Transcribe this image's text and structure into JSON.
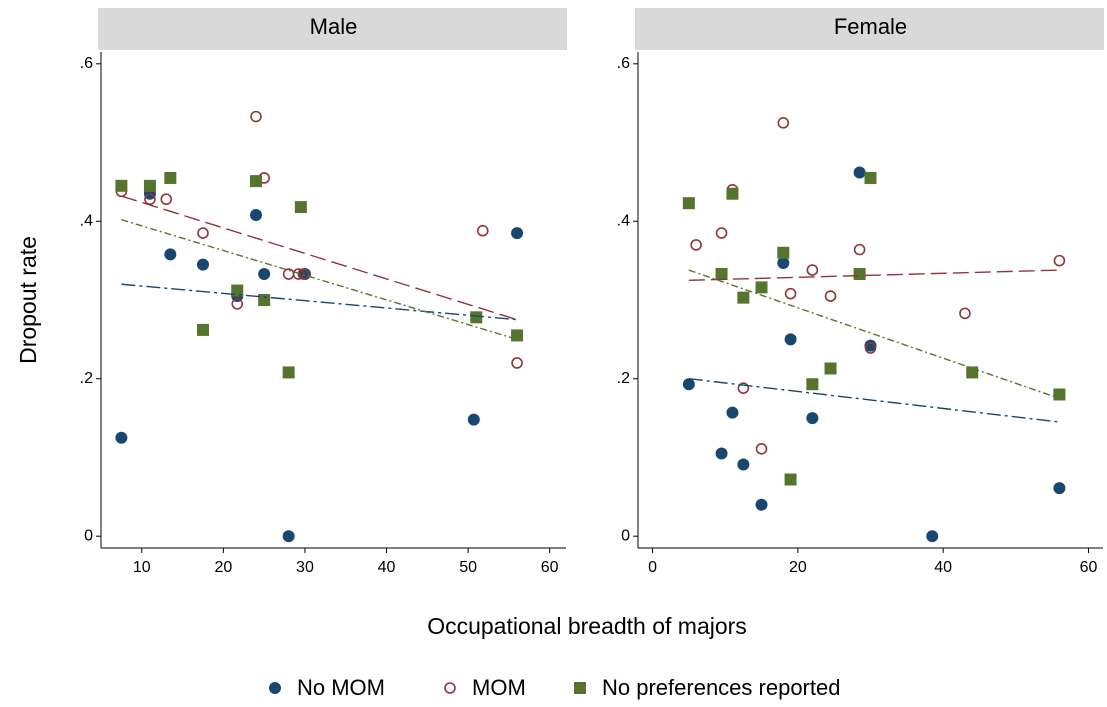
{
  "chart_data": {
    "type": "scatter",
    "xlabel": "Occupational breadth of majors",
    "ylabel": "Dropout rate",
    "series": [
      {
        "name": "No MOM",
        "color": "#1a476f",
        "marker": "circle"
      },
      {
        "name": "MOM",
        "color": "#90353b",
        "marker": "hollow-circle"
      },
      {
        "name": "No preferences reported",
        "color": "#55752f",
        "marker": "square"
      }
    ],
    "panels": [
      {
        "title": "Male",
        "xlim": [
          5,
          62
        ],
        "xticks": [
          10,
          20,
          30,
          40,
          50,
          60
        ],
        "ylim": [
          -0.015,
          0.615
        ],
        "yticks": [
          0,
          {
            "value": 0.2,
            "label": ".2"
          },
          {
            "value": 0.4,
            "label": ".4"
          },
          {
            "value": 0.6,
            "label": ".6"
          }
        ],
        "data": [
          {
            "x": [
              7.5,
              11,
              13.5,
              17.5,
              21.7,
              24,
              25,
              28,
              30,
              50.7,
              56
            ],
            "values": [
              0.125,
              0.435,
              0.358,
              0.345,
              0.305,
              0.408,
              0.333,
              0,
              0.333,
              0.148,
              0.385
            ],
            "fit": {
              "x": [
                7.5,
                56
              ],
              "values": [
                0.32,
                0.275
              ]
            }
          },
          {
            "x": [
              7.5,
              11,
              13,
              17.5,
              21.7,
              24,
              25,
              28,
              29.2,
              29.8,
              51.8,
              56
            ],
            "values": [
              0.438,
              0.428,
              0.428,
              0.385,
              0.295,
              0.533,
              0.455,
              0.333,
              0.333,
              0.333,
              0.388,
              0.22
            ],
            "fit": {
              "x": [
                7.5,
                56
              ],
              "values": [
                0.432,
                0.275
              ]
            }
          },
          {
            "x": [
              7.5,
              11,
              13.5,
              17.5,
              21.7,
              24,
              25,
              28,
              29.5,
              51,
              56
            ],
            "values": [
              0.445,
              0.445,
              0.455,
              0.262,
              0.312,
              0.451,
              0.3,
              0.208,
              0.418,
              0.278,
              0.255
            ],
            "fit": {
              "x": [
                7.5,
                56
              ],
              "values": [
                0.402,
                0.25
              ]
            }
          }
        ]
      },
      {
        "title": "Female",
        "xlim": [
          -2,
          62
        ],
        "xticks": [
          0,
          20,
          40,
          60
        ],
        "ylim": [
          -0.015,
          0.615
        ],
        "yticks": [
          0,
          {
            "value": 0.2,
            "label": ".2"
          },
          {
            "value": 0.4,
            "label": ".4"
          },
          {
            "value": 0.6,
            "label": ".6"
          }
        ],
        "data": [
          {
            "x": [
              5,
              9.5,
              11,
              12.5,
              15,
              18,
              19,
              22,
              28.5,
              30,
              38.5,
              56
            ],
            "values": [
              0.193,
              0.105,
              0.157,
              0.091,
              0.04,
              0.347,
              0.25,
              0.15,
              0.462,
              0.242,
              0,
              0.061
            ],
            "fit": {
              "x": [
                5,
                56
              ],
              "values": [
                0.2,
                0.145
              ]
            }
          },
          {
            "x": [
              6,
              9.5,
              11,
              12.5,
              15,
              18,
              19,
              22,
              24.5,
              28.5,
              30,
              43,
              56
            ],
            "values": [
              0.37,
              0.385,
              0.44,
              0.188,
              0.111,
              0.525,
              0.308,
              0.338,
              0.305,
              0.364,
              0.239,
              0.283,
              0.35
            ],
            "fit": {
              "x": [
                5,
                56
              ],
              "values": [
                0.325,
                0.338
              ]
            }
          },
          {
            "x": [
              5,
              9.5,
              11,
              12.5,
              15,
              18,
              19,
              22,
              24.5,
              28.5,
              30,
              44,
              56
            ],
            "values": [
              0.423,
              0.333,
              0.435,
              0.303,
              0.316,
              0.36,
              0.072,
              0.193,
              0.213,
              0.333,
              0.455,
              0.208,
              0.18
            ],
            "fit": {
              "x": [
                5,
                56
              ],
              "values": [
                0.338,
                0.175
              ]
            }
          }
        ]
      }
    ]
  }
}
